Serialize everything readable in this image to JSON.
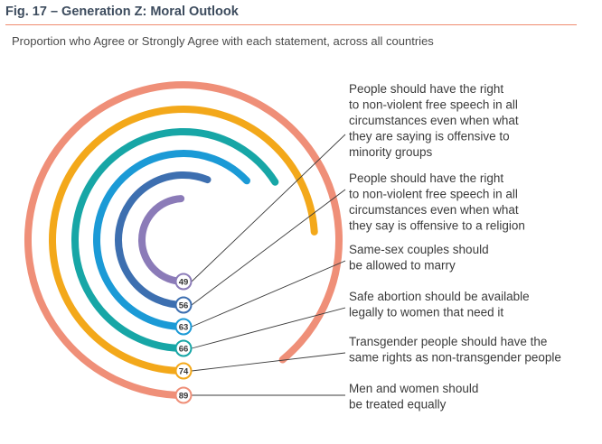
{
  "header": {
    "fig_title": "Fig. 17 – Generation Z: Moral Outlook",
    "subtitle": "Proportion who Agree or Strongly Agree with each statement, across all countries"
  },
  "chart_data": {
    "type": "radial-bar",
    "title": "Fig. 17 – Generation Z: Moral Outlook",
    "subtitle": "Proportion who Agree or Strongly Agree with each statement, across all countries",
    "unit": "%",
    "max": 100,
    "series": [
      {
        "value": 49,
        "color": "#8b7bb8",
        "label": [
          "People should have the right",
          "to non-violent free speech in all",
          "circumstances even when what",
          "they are saying is offensive to",
          "minority groups"
        ]
      },
      {
        "value": 56,
        "color": "#3d6fb0",
        "label": [
          "People should have the right",
          "to non-violent free speech in all",
          "circumstances even when what",
          "they say is offensive to a religion"
        ]
      },
      {
        "value": 63,
        "color": "#1b9ad6",
        "label": [
          "Same-sex couples should",
          "be allowed to marry"
        ]
      },
      {
        "value": 66,
        "color": "#17a6a6",
        "label": [
          "Safe abortion should be available",
          "legally to women that need it"
        ]
      },
      {
        "value": 74,
        "color": "#f3a81a",
        "label": [
          "Transgender people should have the",
          "same rights as non-transgender people"
        ]
      },
      {
        "value": 89,
        "color": "#ef8f78",
        "label": [
          "Men and women should",
          "be treated equally"
        ]
      }
    ]
  },
  "colors": {
    "title": "#3d4c5e",
    "rule": "#f08b6f",
    "leader": "#3b3b3b"
  }
}
